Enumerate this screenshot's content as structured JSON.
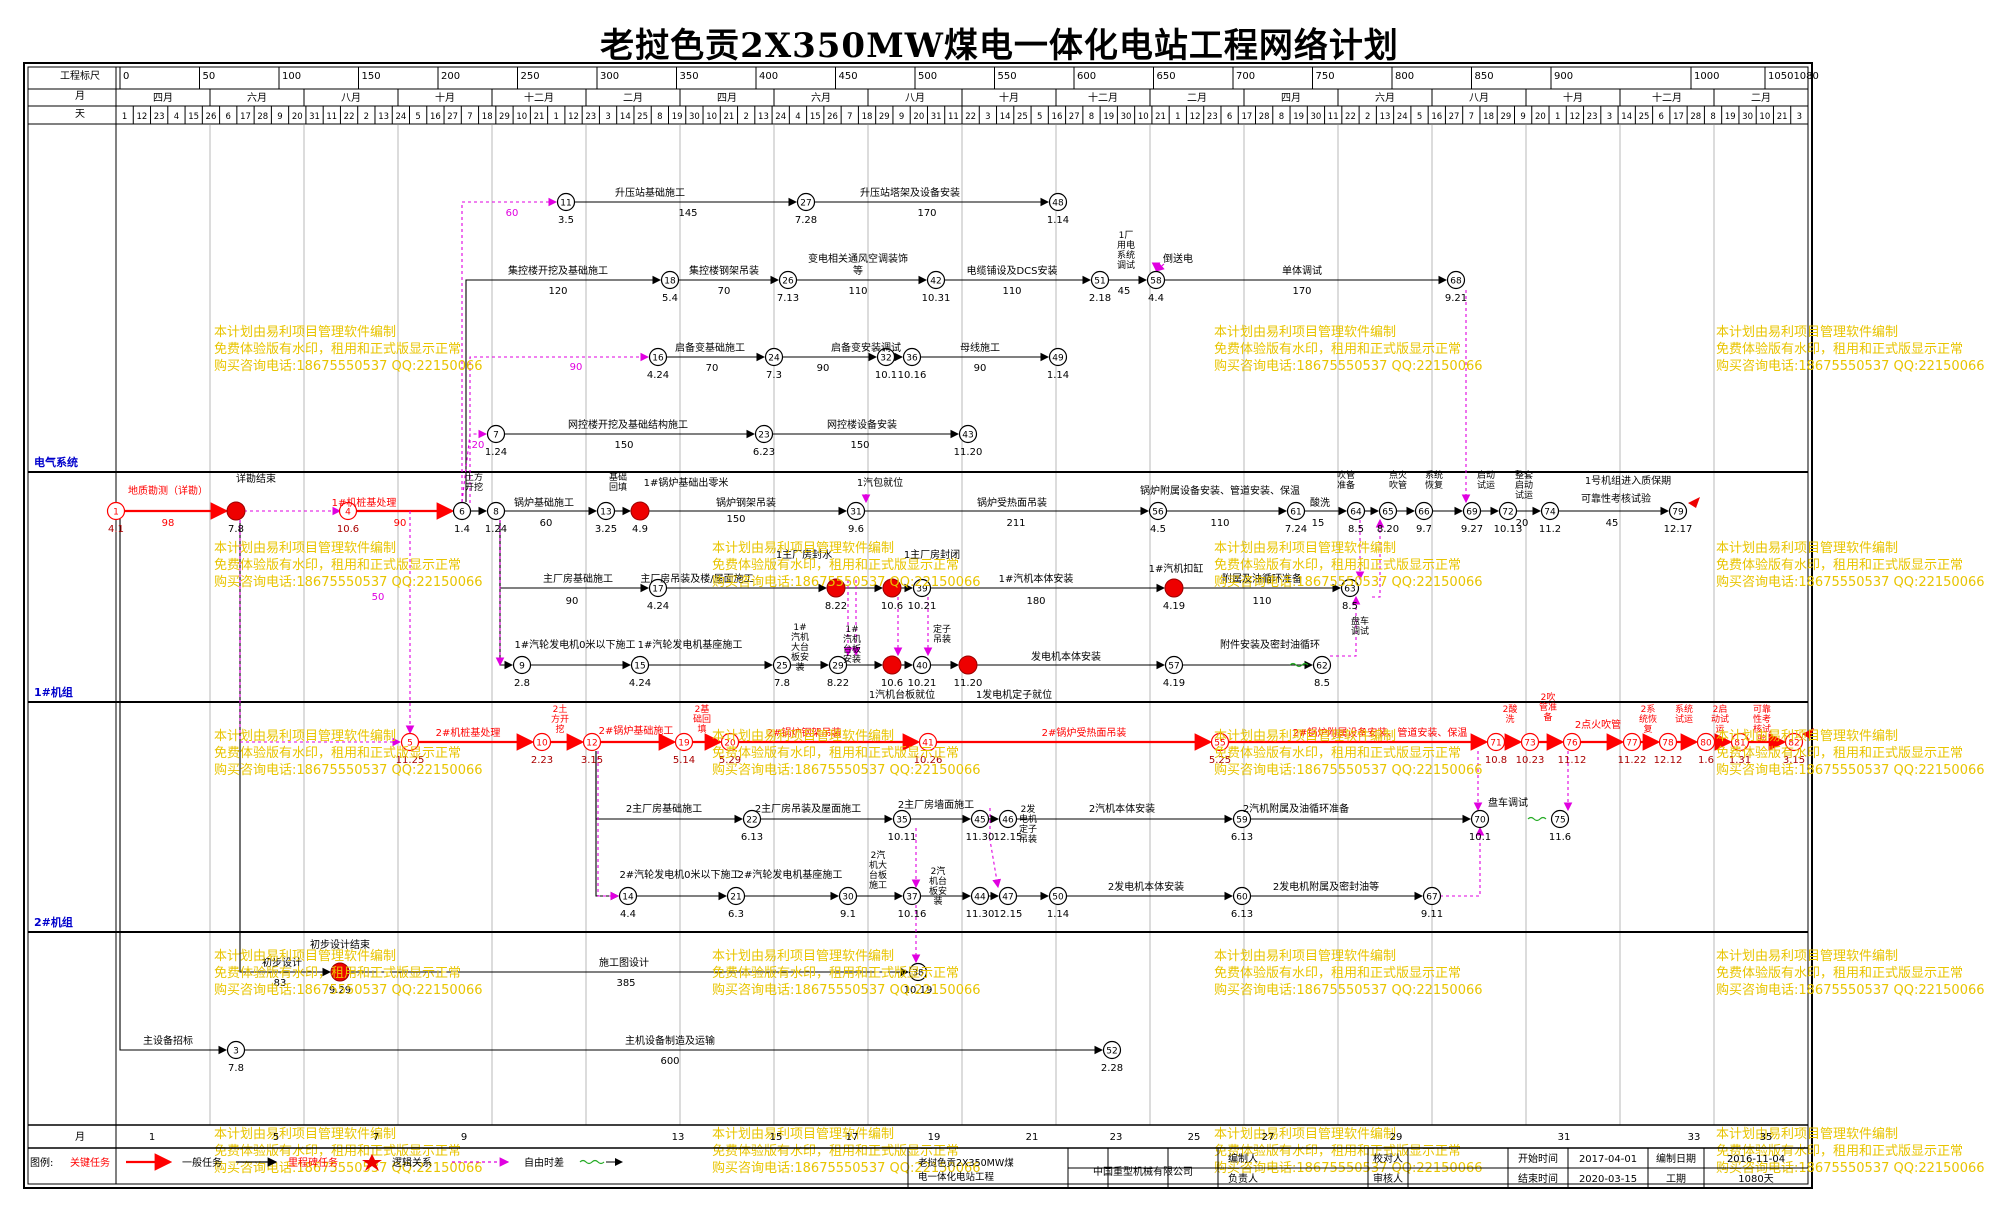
{
  "title": "老挝色贡2X350MW煤电一体化电站工程网络计划",
  "header": {
    "row_labels": {
      "scale": "工程标尺",
      "month": "月",
      "day": "天"
    },
    "scale_ticks": [
      "0",
      "50",
      "100",
      "150",
      "200",
      "250",
      "300",
      "350",
      "400",
      "450",
      "500",
      "550",
      "600",
      "650",
      "700",
      "750",
      "800",
      "850",
      "900",
      "1000",
      "10501080"
    ],
    "months": [
      "四月",
      "六月",
      "八月",
      "十月",
      "十二月",
      "二月",
      "四月",
      "六月",
      "八月",
      "十月",
      "十二月",
      "二月",
      "四月",
      "六月",
      "八月",
      "十月",
      "十二月",
      "二月"
    ],
    "days": [
      "1",
      "12",
      "23",
      "4",
      "15",
      "26",
      "6",
      "17",
      "28",
      "9",
      "20",
      "31",
      "11",
      "22",
      "2",
      "13",
      "24",
      "5",
      "16",
      "27",
      "7",
      "18",
      "29",
      "10",
      "21",
      "1",
      "12",
      "23",
      "3",
      "14",
      "25",
      "8",
      "19",
      "30",
      "10",
      "21",
      "2",
      "13",
      "24",
      "4",
      "15",
      "26",
      "7",
      "18",
      "29",
      "9",
      "20",
      "31",
      "11",
      "22",
      "3",
      "14",
      "25",
      "5",
      "16",
      "27",
      "8",
      "19",
      "30",
      "10",
      "21",
      "1",
      "12",
      "23",
      "6",
      "17",
      "28",
      "8",
      "19",
      "30",
      "11",
      "22",
      "2",
      "13",
      "24",
      "5",
      "16",
      "27",
      "7",
      "18",
      "29",
      "9",
      "20",
      "1",
      "12",
      "23",
      "3",
      "14",
      "25",
      "6",
      "17",
      "28",
      "8",
      "19",
      "30",
      "10",
      "21",
      "3"
    ]
  },
  "sections": [
    "电气系统",
    "1#机组",
    "2#机组"
  ],
  "activities": [
    {
      "text": "升压站基础施工"
    },
    {
      "text": "145"
    },
    {
      "text": "升压站塔架及设备安装"
    },
    {
      "text": "170"
    },
    {
      "text": "集控楼开挖及基础施工"
    },
    {
      "text": "120"
    },
    {
      "text": "集控楼钢架吊装"
    },
    {
      "text": "70"
    },
    {
      "text": "变电相关通风空调装饰"
    },
    {
      "text": "等"
    },
    {
      "text": "110"
    },
    {
      "text": "电缆铺设及DCS安装"
    },
    {
      "text": "110"
    },
    {
      "text": "1厂用电系统调试"
    },
    {
      "text": "45"
    },
    {
      "text": "倒送电"
    },
    {
      "text": "单体调试"
    },
    {
      "text": "170"
    },
    {
      "text": "启备变基础施工"
    },
    {
      "text": "70"
    },
    {
      "text": "启备变安装调试"
    },
    {
      "text": "90"
    },
    {
      "text": "母线施工"
    },
    {
      "text": "90"
    },
    {
      "text": "网控楼开挖及基础结构施工"
    },
    {
      "text": "150"
    },
    {
      "text": "网控楼设备安装"
    },
    {
      "text": "150"
    },
    {
      "text": "60"
    },
    {
      "text": "90"
    },
    {
      "text": "20"
    },
    {
      "text": "地质勘测（详勘）"
    },
    {
      "text": "98"
    },
    {
      "text": "详勘结束"
    },
    {
      "text": "1#机桩基处理"
    },
    {
      "text": "90"
    },
    {
      "text": "土方开挖"
    },
    {
      "text": "锅炉基础施工"
    },
    {
      "text": "60"
    },
    {
      "text": "基础回填"
    },
    {
      "text": "1#锅炉基础出零米"
    },
    {
      "text": "锅炉钢架吊装"
    },
    {
      "text": "150"
    },
    {
      "text": "1汽包就位"
    },
    {
      "text": "锅炉受热面吊装"
    },
    {
      "text": "211"
    },
    {
      "text": "锅炉附属设备安装、管道安装、保温"
    },
    {
      "text": "110"
    },
    {
      "text": "酸洗"
    },
    {
      "text": "吹管准备"
    },
    {
      "text": "点火吹管"
    },
    {
      "text": "系统恢复"
    },
    {
      "text": "启动试运"
    },
    {
      "text": "整套启动试运"
    },
    {
      "text": "1号机组进入质保期"
    },
    {
      "text": "可靠性考核试验"
    },
    {
      "text": "45"
    },
    {
      "text": "15"
    },
    {
      "text": "20"
    },
    {
      "text": "主厂房基础施工"
    },
    {
      "text": "90"
    },
    {
      "text": "主厂房吊装及楼/屋面施工"
    },
    {
      "text": "1主厂房封水"
    },
    {
      "text": "1主厂房封闭"
    },
    {
      "text": "1#汽机本体安装"
    },
    {
      "text": "180"
    },
    {
      "text": "1#汽机扣缸"
    },
    {
      "text": "附属及油循环准备"
    },
    {
      "text": "110"
    },
    {
      "text": "盘车调试"
    },
    {
      "text": "1#汽轮发电机0米以下施工"
    },
    {
      "text": "1#汽轮发电机基座施工"
    },
    {
      "text": "1#汽机大台板安装"
    },
    {
      "text": "1#汽机台板安装"
    },
    {
      "text": "定子吊装"
    },
    {
      "text": "发电机本体安装"
    },
    {
      "text": "附件安装及密封油循环"
    },
    {
      "text": "1汽机台板就位"
    },
    {
      "text": "1发电机定子就位"
    },
    {
      "text": "50"
    },
    {
      "text": "2#机桩基处理"
    },
    {
      "text": "2土方开挖"
    },
    {
      "text": "2#锅炉基础施工"
    },
    {
      "text": "2基础回填"
    },
    {
      "text": "2#锅炉钢架吊装"
    },
    {
      "text": "2#锅炉受热面吊装"
    },
    {
      "text": "2#锅炉附属设备安装、管道安装、保温"
    },
    {
      "text": "2酸洗"
    },
    {
      "text": "2吹管准备"
    },
    {
      "text": "2点火吹管"
    },
    {
      "text": "2系统恢复"
    },
    {
      "text": "系统试运"
    },
    {
      "text": "2启动试运"
    },
    {
      "text": "可靠性考核试验"
    },
    {
      "text": "2主厂房基础施工"
    },
    {
      "text": "2主厂房吊装及屋面施工"
    },
    {
      "text": "2主厂房墙面施工"
    },
    {
      "text": "2发电机定子吊装"
    },
    {
      "text": "2汽机本体安装"
    },
    {
      "text": "2汽机附属及油循环准备"
    },
    {
      "text": "盘车调试"
    },
    {
      "text": "2#汽轮发电机0米以下施工"
    },
    {
      "text": "2#汽轮发电机基座施工"
    },
    {
      "text": "2汽机大台板施工"
    },
    {
      "text": "2汽机台板安装"
    },
    {
      "text": "2发电机本体安装"
    },
    {
      "text": "2发电机附属及密封油等"
    },
    {
      "text": "初步设计"
    },
    {
      "text": "初步设计结束"
    },
    {
      "text": "83"
    },
    {
      "text": "施工图设计"
    },
    {
      "text": "385"
    },
    {
      "text": "主设备招标"
    },
    {
      "text": "主机设备制造及运输"
    },
    {
      "text": "600"
    }
  ],
  "watermark": [
    "本计划由易利项目管理软件编制",
    "免费体验版有水印，租用和正式版显示正常",
    "购买咨询电话:18675550537 QQ:22150066"
  ],
  "footer": {
    "bottom_months": [
      "1",
      "5",
      "7",
      "9",
      "13",
      "15",
      "17",
      "19",
      "21",
      "23",
      "25",
      "27",
      "29",
      "31",
      "33",
      "35"
    ],
    "legend_label": "图例:",
    "legend": [
      "关键任务",
      "一般任务",
      "里程碑任务",
      "逻辑关系",
      "自由时差"
    ],
    "project_name": "老挝色贡2X350MW煤电一体化电站工程",
    "company": "中国重型机械有限公司",
    "labels": {
      "editor": "编制人",
      "checker": "校对人",
      "owner": "负责人",
      "reviewer": "审核人",
      "start": "开始时间",
      "end": "结束时间",
      "made": "编制日期",
      "duration": "工期"
    },
    "values": {
      "start": "2017-04-01",
      "end": "2020-03-15",
      "made": "2016-11-04",
      "duration": "1080天"
    }
  }
}
